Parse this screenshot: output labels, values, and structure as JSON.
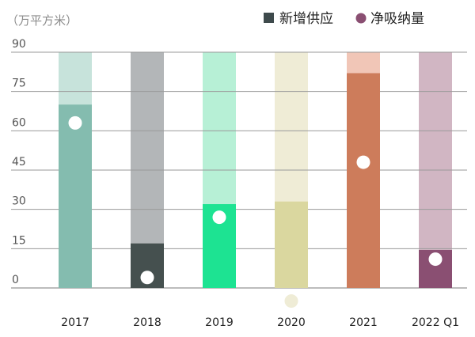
{
  "chart_data": {
    "type": "bar",
    "unit_label": "（万平方米）",
    "legend": [
      {
        "label": "新增供应",
        "marker": "square",
        "color": "#3e4a4c"
      },
      {
        "label": "净吸纳量",
        "marker": "circle",
        "color": "#8a4f72"
      }
    ],
    "y_ticks": [
      0,
      15,
      30,
      45,
      60,
      75,
      90
    ],
    "ylim": [
      0,
      90
    ],
    "categories": [
      "2017",
      "2018",
      "2019",
      "2020",
      "2021",
      "2022 Q1"
    ],
    "series": [
      {
        "name": "新增供应",
        "values": [
          70,
          17,
          32,
          33,
          82,
          14.5
        ]
      },
      {
        "name": "净吸纳量",
        "values": [
          63,
          4,
          27,
          -5,
          48,
          11
        ]
      }
    ],
    "bar_colors": [
      "#84bcaf",
      "#45504f",
      "#1de392",
      "#dad79f",
      "#cd7c5b",
      "#8a4f72"
    ],
    "background_colors": [
      "#c7e3db",
      "#b3b6b8",
      "#b7f0d6",
      "#efecd6",
      "#f1c6b7",
      "#d1b6c3"
    ],
    "dot_colors": [
      "#ffffff",
      "#ffffff",
      "#ffffff",
      "#efecd6",
      "#ffffff",
      "#ffffff"
    ],
    "grid": true,
    "legend_position": "top-right"
  }
}
